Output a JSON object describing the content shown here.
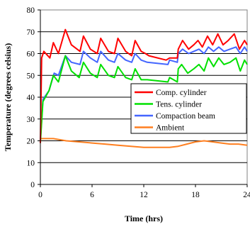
{
  "chart_data": {
    "type": "line",
    "xlabel": "Time (hrs)",
    "ylabel": "Temperature (degrees celsius)",
    "xlim": [
      0,
      24
    ],
    "ylim": [
      0,
      80
    ],
    "xticks": [
      0,
      6,
      12,
      18,
      24
    ],
    "yticks": [
      0,
      10,
      20,
      30,
      40,
      50,
      60,
      70,
      80
    ],
    "grid": "horizontal",
    "legend": "center-right",
    "series": [
      {
        "name": "Comp. cylinder",
        "color": "#ff0000",
        "points": [
          [
            0,
            19
          ],
          [
            0.15,
            58
          ],
          [
            0.4,
            61
          ],
          [
            1.1,
            58
          ],
          [
            1.5,
            65
          ],
          [
            2.1,
            60
          ],
          [
            2.9,
            71
          ],
          [
            3.6,
            64
          ],
          [
            4.6,
            61
          ],
          [
            5,
            68
          ],
          [
            5.8,
            62
          ],
          [
            6.6,
            60
          ],
          [
            7,
            67
          ],
          [
            7.9,
            61
          ],
          [
            8.6,
            60
          ],
          [
            9,
            67
          ],
          [
            9.9,
            61
          ],
          [
            10.6,
            59
          ],
          [
            11,
            66
          ],
          [
            11.7,
            61
          ],
          [
            12.2,
            60
          ],
          [
            12.6,
            59
          ],
          [
            14.6,
            57
          ],
          [
            15,
            58
          ],
          [
            15.9,
            58
          ],
          [
            16,
            62
          ],
          [
            16.5,
            66
          ],
          [
            17.2,
            62
          ],
          [
            17.8,
            64
          ],
          [
            18.3,
            66
          ],
          [
            18.8,
            63
          ],
          [
            19.4,
            68
          ],
          [
            20,
            64
          ],
          [
            20.6,
            69
          ],
          [
            21.2,
            64
          ],
          [
            21.8,
            66
          ],
          [
            22.5,
            69
          ],
          [
            23.1,
            62
          ],
          [
            23.7,
            66
          ],
          [
            24,
            64
          ]
        ]
      },
      {
        "name": "Tens. cylinder",
        "color": "#00e000",
        "points": [
          [
            0,
            19
          ],
          [
            0.3,
            38
          ],
          [
            1,
            43
          ],
          [
            1.5,
            50
          ],
          [
            2.1,
            47
          ],
          [
            2.9,
            59
          ],
          [
            3.6,
            52
          ],
          [
            4.5,
            49
          ],
          [
            5,
            56
          ],
          [
            5.8,
            51
          ],
          [
            6.6,
            49
          ],
          [
            7,
            55
          ],
          [
            7.9,
            50
          ],
          [
            8.6,
            49
          ],
          [
            9,
            54
          ],
          [
            9.9,
            49
          ],
          [
            10.6,
            48
          ],
          [
            11,
            53
          ],
          [
            11.7,
            48
          ],
          [
            12.4,
            48
          ],
          [
            14.8,
            47
          ],
          [
            15,
            49
          ],
          [
            15.9,
            47
          ],
          [
            16,
            53
          ],
          [
            16.4,
            55
          ],
          [
            17.1,
            51
          ],
          [
            17.8,
            53
          ],
          [
            18.4,
            55
          ],
          [
            19,
            52
          ],
          [
            19.5,
            58
          ],
          [
            20.1,
            54
          ],
          [
            20.7,
            58
          ],
          [
            21.3,
            55
          ],
          [
            22,
            56
          ],
          [
            22.7,
            58
          ],
          [
            23.2,
            52
          ],
          [
            23.7,
            57
          ],
          [
            24,
            55
          ]
        ]
      },
      {
        "name": "Compaction beam",
        "color": "#4466ff",
        "points": [
          [
            0,
            20
          ],
          [
            0.3,
            39
          ],
          [
            1,
            43
          ],
          [
            1.6,
            51
          ],
          [
            2.1,
            50
          ],
          [
            2.9,
            59
          ],
          [
            3.6,
            56
          ],
          [
            4.6,
            55
          ],
          [
            5,
            61
          ],
          [
            5.8,
            58
          ],
          [
            6.6,
            56
          ],
          [
            7,
            61
          ],
          [
            7.9,
            57
          ],
          [
            8.6,
            56
          ],
          [
            9,
            60
          ],
          [
            9.9,
            57
          ],
          [
            10.6,
            56
          ],
          [
            11,
            60
          ],
          [
            11.7,
            57
          ],
          [
            12.4,
            56
          ],
          [
            14.8,
            55
          ],
          [
            15,
            57
          ],
          [
            15.9,
            56
          ],
          [
            16,
            60
          ],
          [
            16.5,
            62
          ],
          [
            17.2,
            60
          ],
          [
            17.8,
            61
          ],
          [
            18.4,
            62
          ],
          [
            19,
            60
          ],
          [
            19.5,
            63
          ],
          [
            20.1,
            61
          ],
          [
            20.7,
            63
          ],
          [
            21.3,
            61
          ],
          [
            22,
            62
          ],
          [
            22.7,
            63
          ],
          [
            23.2,
            60
          ],
          [
            23.7,
            63
          ],
          [
            24,
            61
          ]
        ]
      },
      {
        "name": "Ambient",
        "color": "#ff7f20",
        "points": [
          [
            0,
            21
          ],
          [
            0.5,
            21
          ],
          [
            1.5,
            21
          ],
          [
            3,
            20
          ],
          [
            4.5,
            19.5
          ],
          [
            6,
            19
          ],
          [
            7.5,
            18.5
          ],
          [
            9,
            18
          ],
          [
            10.5,
            17.5
          ],
          [
            12,
            17
          ],
          [
            13.5,
            17
          ],
          [
            15,
            17
          ],
          [
            16,
            17.5
          ],
          [
            17,
            18.5
          ],
          [
            18,
            19.5
          ],
          [
            19,
            20
          ],
          [
            20,
            19.5
          ],
          [
            21,
            19
          ],
          [
            22,
            18.5
          ],
          [
            23,
            18.5
          ],
          [
            24,
            18
          ]
        ]
      }
    ]
  }
}
